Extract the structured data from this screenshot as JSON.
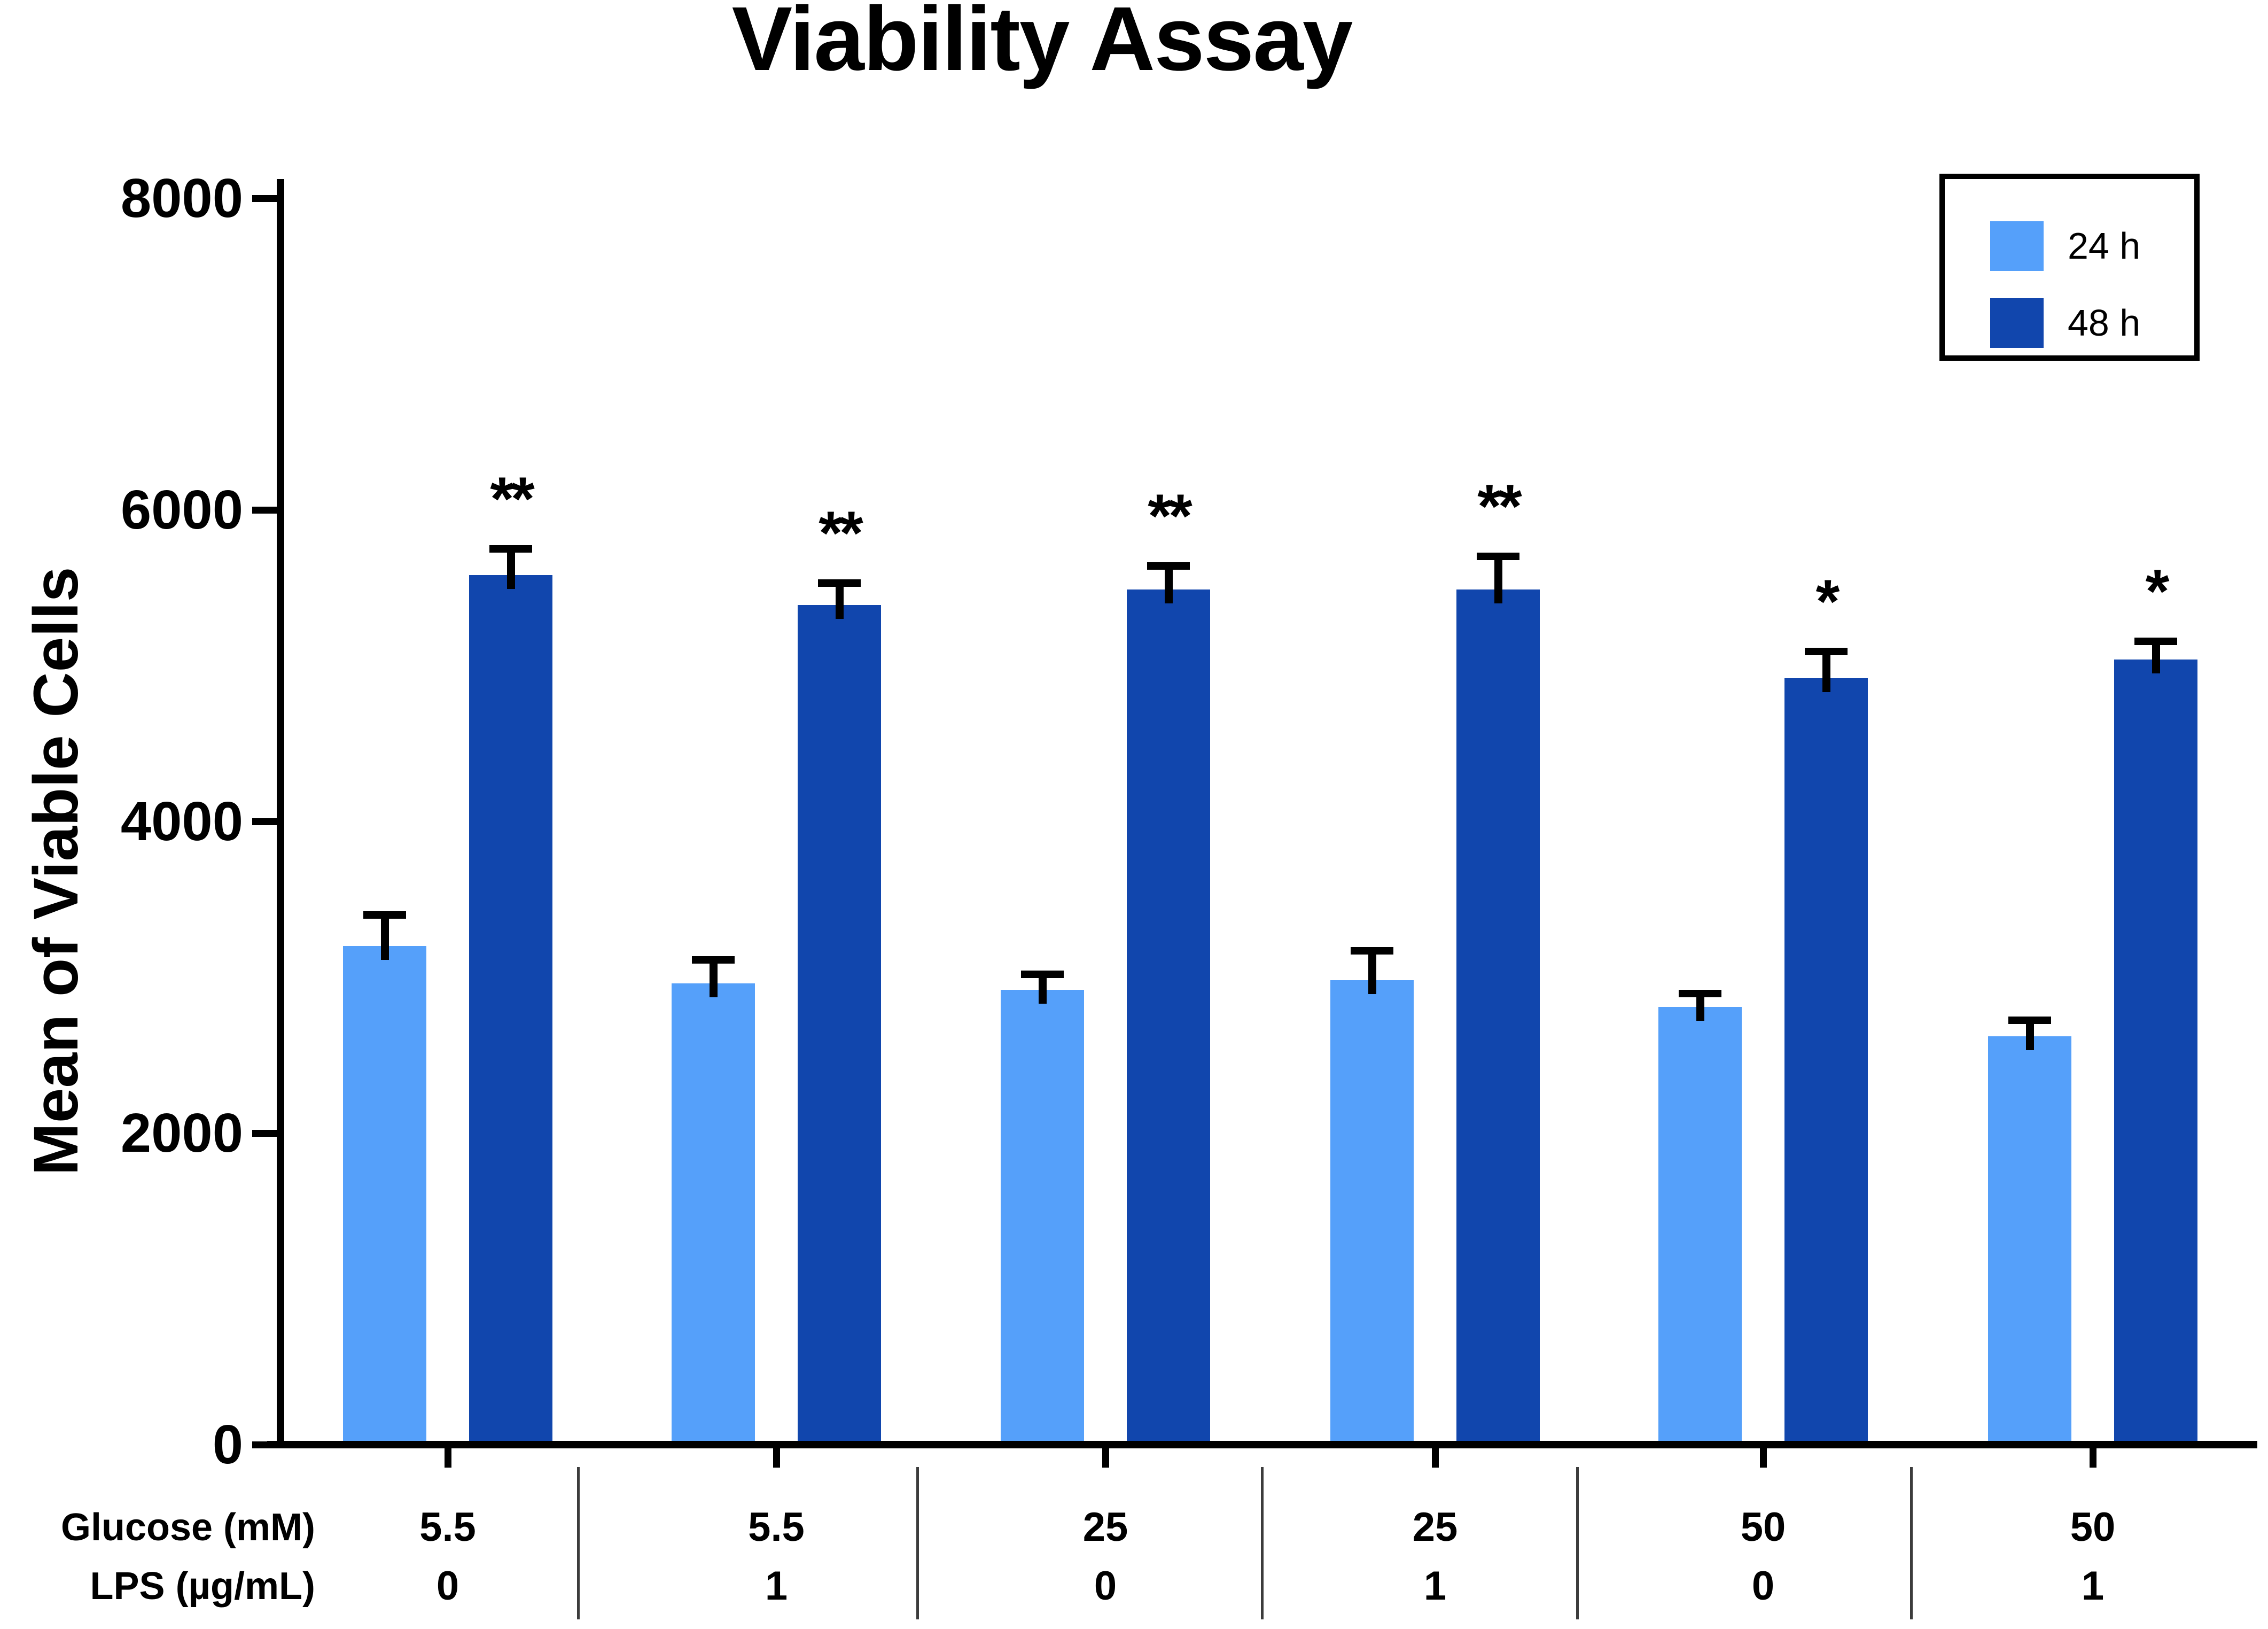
{
  "title": "Viability Assay",
  "y_axis": {
    "label": "Mean of Viable Cells"
  },
  "x_axis": {
    "row1_label": "Glucose (mM)",
    "row2_label": "LPS (µg/mL)"
  },
  "legend": {
    "items": [
      {
        "label": "24 h",
        "color": "#55a0fa"
      },
      {
        "label": "48 h",
        "color": "#1146ad"
      }
    ]
  },
  "colors": {
    "axis": "#000000",
    "background": "#ffffff"
  },
  "chart_data": {
    "type": "bar",
    "title": "Viability Assay",
    "xlabel": "",
    "ylabel": "Mean of Viable Cells",
    "ylim": [
      0,
      8000
    ],
    "yticks": [
      0,
      2000,
      4000,
      6000,
      8000
    ],
    "grid": false,
    "legend_position": "top-right",
    "categories": [
      {
        "glucose_mM": "5.5",
        "lps_ug_mL": "0"
      },
      {
        "glucose_mM": "5.5",
        "lps_ug_mL": "1"
      },
      {
        "glucose_mM": "25",
        "lps_ug_mL": "0"
      },
      {
        "glucose_mM": "25",
        "lps_ug_mL": "1"
      },
      {
        "glucose_mM": "50",
        "lps_ug_mL": "0"
      },
      {
        "glucose_mM": "50",
        "lps_ug_mL": "1"
      }
    ],
    "series": [
      {
        "name": "24 h",
        "color": "#55a0fa",
        "values": [
          3200,
          2960,
          2920,
          2980,
          2810,
          2620
        ],
        "errors_plus": [
          200,
          150,
          100,
          190,
          85,
          105
        ],
        "significance": [
          "",
          "",
          "",
          "",
          "",
          ""
        ]
      },
      {
        "name": "48 h",
        "color": "#1146ad",
        "values": [
          5580,
          5390,
          5490,
          5490,
          4920,
          5040
        ],
        "errors_plus": [
          170,
          140,
          150,
          210,
          170,
          115
        ],
        "significance": [
          "**",
          "**",
          "**",
          "**",
          "*",
          "*"
        ]
      }
    ]
  }
}
